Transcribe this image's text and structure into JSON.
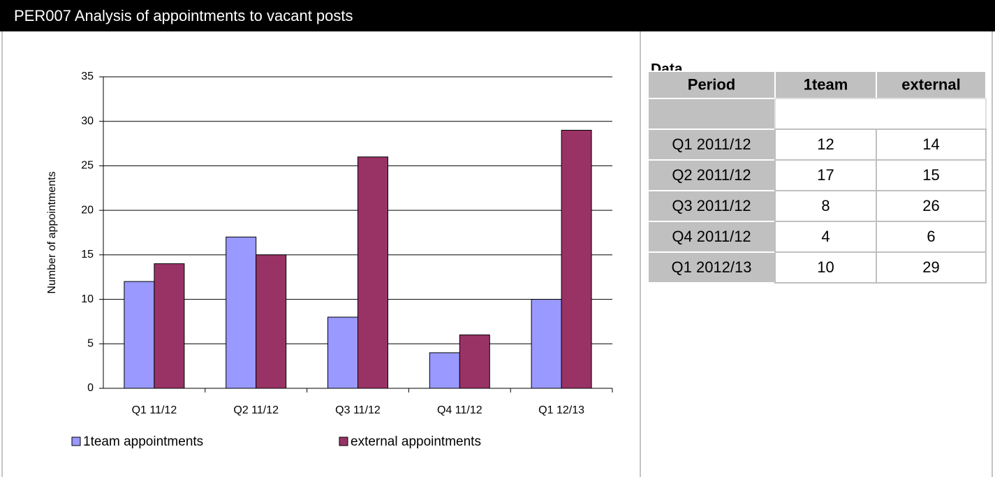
{
  "header": {
    "title": "PER007 Analysis of appointments to vacant posts"
  },
  "chart_data": {
    "type": "bar",
    "y_label": "Number of appointments",
    "categories": [
      "Q1 11/12",
      "Q2 11/12",
      "Q3 11/12",
      "Q4 11/12",
      "Q1 12/13"
    ],
    "series": [
      {
        "name": "1team appointments",
        "color": "#9999ff",
        "values": [
          12,
          17,
          8,
          4,
          10
        ]
      },
      {
        "name": "external appointments",
        "color": "#993366",
        "values": [
          14,
          15,
          26,
          6,
          29
        ]
      }
    ],
    "ylim": [
      0,
      35
    ],
    "yticks": [
      0,
      5,
      10,
      15,
      20,
      25,
      30,
      35
    ],
    "grid": true,
    "legend": "bottom"
  },
  "table": {
    "title": "Data",
    "columns": [
      "Period",
      "1team",
      "external"
    ],
    "rows": [
      [
        "Q1 2011/12",
        12,
        14
      ],
      [
        "Q2 2011/12",
        17,
        15
      ],
      [
        "Q3 2011/12",
        8,
        26
      ],
      [
        "Q4 2011/12",
        4,
        6
      ],
      [
        "Q1 2012/13",
        10,
        29
      ]
    ]
  }
}
